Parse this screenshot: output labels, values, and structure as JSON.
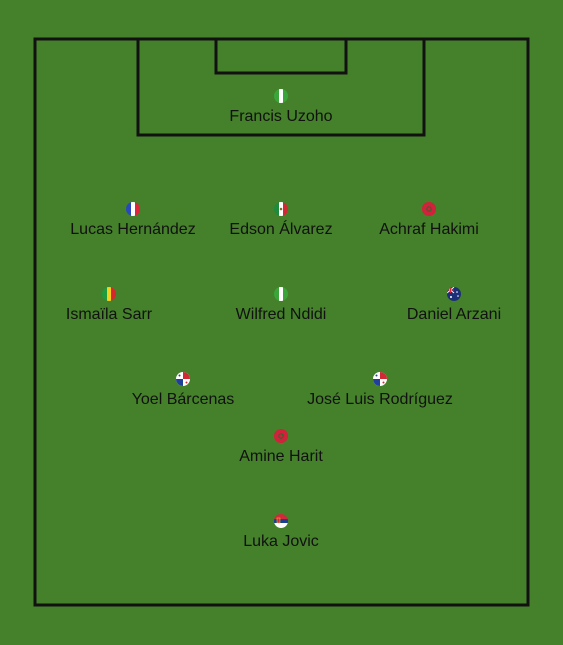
{
  "pitch": {
    "grass_color": "#45802b",
    "line_color": "#111111"
  },
  "players": [
    {
      "name": "Francis Uzoho",
      "flag": "nigeria-flag-icon",
      "colors": [
        "#3aa63a",
        "#ffffff",
        "#3aa63a"
      ]
    },
    {
      "name": "Lucas Hernández",
      "flag": "france-flag-icon",
      "colors": [
        "#2a49b8",
        "#ffffff",
        "#e0253a"
      ]
    },
    {
      "name": "Edson Álvarez",
      "flag": "mexico-flag-icon",
      "colors": [
        "#1e8a3c",
        "#ffffff",
        "#d22a34"
      ]
    },
    {
      "name": "Achraf Hakimi",
      "flag": "morocco-flag-icon",
      "colors": [
        "#d0223a"
      ]
    },
    {
      "name": "Ismaïla Sarr",
      "flag": "senegal-flag-icon",
      "colors": [
        "#1f9a3e",
        "#f4d11a",
        "#d6262e"
      ]
    },
    {
      "name": "Wilfred Ndidi",
      "flag": "nigeria-flag-icon",
      "colors": [
        "#3aa63a",
        "#ffffff",
        "#3aa63a"
      ]
    },
    {
      "name": "Daniel Arzani",
      "flag": "australia-flag-icon",
      "colors": [
        "#1d2f78"
      ]
    },
    {
      "name": "Yoel Bárcenas",
      "flag": "panama-flag-icon",
      "colors": [
        "#ffffff",
        "#d22a34",
        "#1f3f9b",
        "#ffffff"
      ]
    },
    {
      "name": "José Luis Rodríguez",
      "flag": "panama-flag-icon",
      "colors": [
        "#ffffff",
        "#d22a34",
        "#1f3f9b",
        "#ffffff"
      ]
    },
    {
      "name": "Amine Harit",
      "flag": "morocco-flag-icon",
      "colors": [
        "#d0223a"
      ]
    },
    {
      "name": "Luka Jovic",
      "flag": "serbia-flag-icon",
      "colors": [
        "#d3283b",
        "#1d3f8f",
        "#ffffff"
      ]
    }
  ]
}
